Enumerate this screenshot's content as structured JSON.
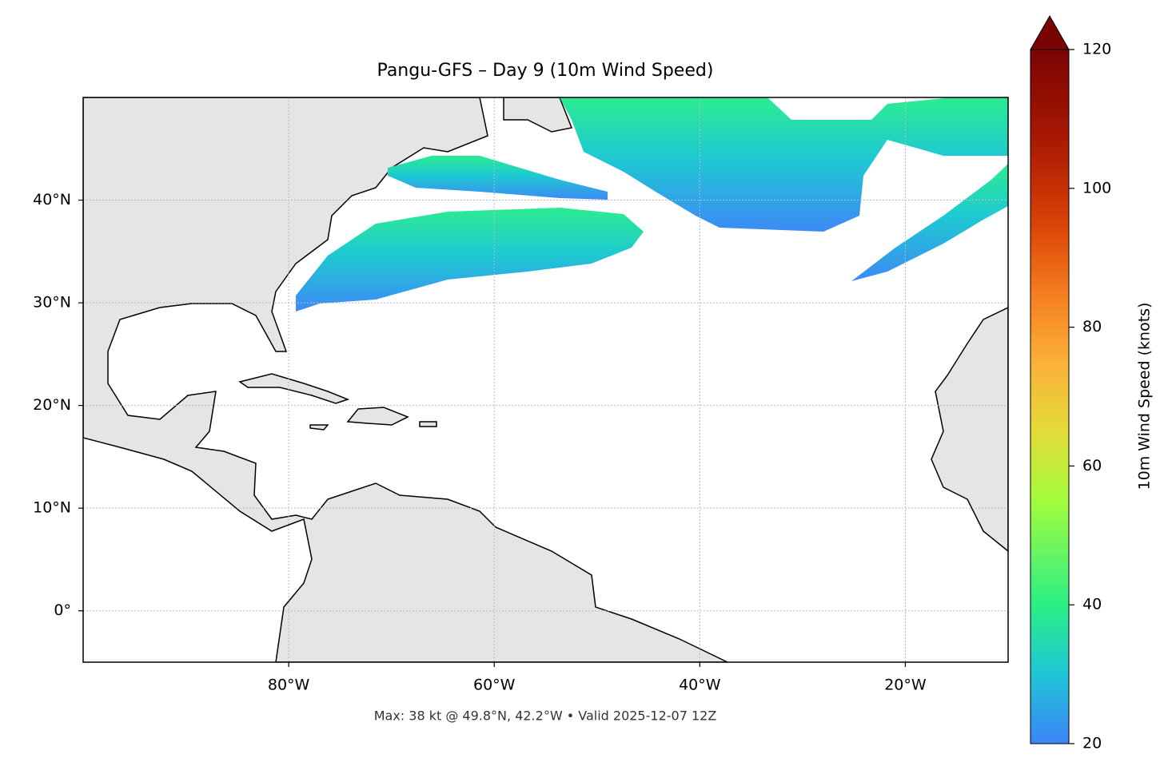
{
  "map": {
    "title": "Pangu-GFS – Day 9 (10m Wind Speed)",
    "footnote": "Max: 38 kt @ 49.8°N, 42.2°W • Valid 2025-12-07 12Z",
    "xlim": [
      -100,
      -10
    ],
    "ylim": [
      -5,
      50
    ],
    "xticks": [
      {
        "value": -80,
        "label": "80°W"
      },
      {
        "value": -60,
        "label": "60°W"
      },
      {
        "value": -40,
        "label": "40°W"
      },
      {
        "value": -20,
        "label": "20°W"
      }
    ],
    "yticks": [
      {
        "value": 0,
        "label": "0°"
      },
      {
        "value": 10,
        "label": "10°N"
      },
      {
        "value": 20,
        "label": "20°N"
      },
      {
        "value": 30,
        "label": "30°N"
      },
      {
        "value": 40,
        "label": "40°N"
      }
    ],
    "grid": true,
    "colorbar": {
      "label": "10m Wind Speed (knots)",
      "lim": [
        20,
        120
      ],
      "ticks": [
        20,
        40,
        60,
        80,
        100,
        120
      ]
    }
  }
}
